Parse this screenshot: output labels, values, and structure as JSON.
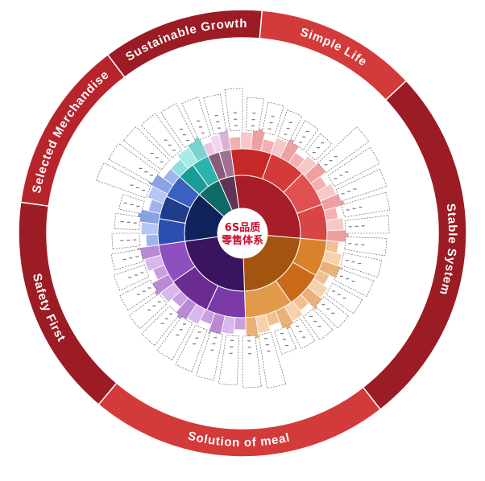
{
  "center": {
    "title_line1": "6S品质",
    "title_line2": "零售体系"
  },
  "outer_ring": {
    "labels": [
      "Simple Life",
      "Stable System",
      "Solution of meal",
      "Safety First",
      "Selected Merchandise",
      "Sustainable Growth"
    ]
  },
  "colors": {
    "ring_dark": "#9b1c24",
    "ring_mid": "#b8242c",
    "ring_bright": "#d33a3a",
    "red": "#d93a3a",
    "brown": "#c86a1a",
    "purple": "#6b2c91",
    "blue": "#1f3d8c",
    "teal": "#1a9b96",
    "mauve": "#8a5a7a"
  },
  "icons": {
    "center": "circle-logo"
  }
}
